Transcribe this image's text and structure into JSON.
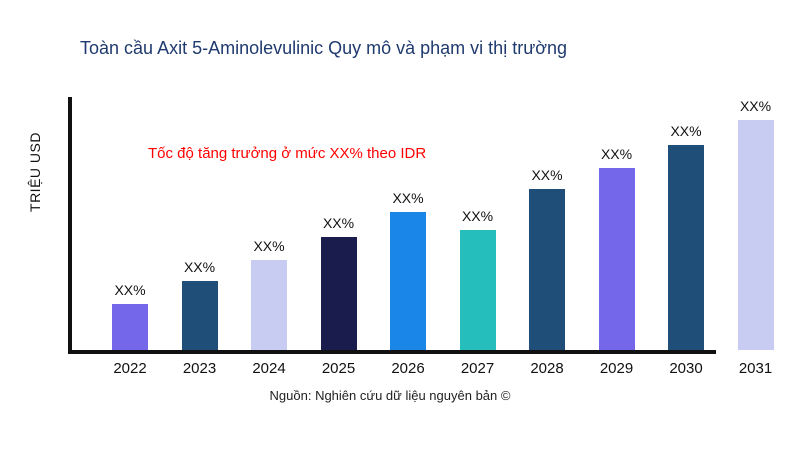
{
  "chart_data": {
    "type": "bar",
    "title": "Toàn cầu Axit 5-Aminolevulinic Quy mô và phạm vi thị trường",
    "ylabel": "TRIỆU USD",
    "annotation": "Tốc độ tăng trưởng ở mức XX% theo IDR",
    "source": "Nguồn: Nghiên cứu dữ liệu nguyên bản ©",
    "xlabel": "",
    "legend": false,
    "grid": false,
    "ylim": [
      0,
      100
    ],
    "categories": [
      "2022",
      "2023",
      "2024",
      "2025",
      "2026",
      "2027",
      "2028",
      "2029",
      "2030",
      "2031"
    ],
    "values": [
      20,
      30,
      39,
      49,
      60,
      52,
      70,
      79,
      89,
      100
    ],
    "bar_labels": [
      "XX%",
      "XX%",
      "XX%",
      "XX%",
      "XX%",
      "XX%",
      "XX%",
      "XX%",
      "XX%",
      "XX%"
    ],
    "bar_colors": [
      "#7567ea",
      "#1f4e79",
      "#c9ccf2",
      "#191c4d",
      "#1a86e8",
      "#26bdbd",
      "#1f4e79",
      "#7567ea",
      "#1f4e79",
      "#c9ccf2"
    ],
    "colors": {
      "title": "#1f3a6e",
      "annotation": "#ff0000",
      "axis": "#111111"
    }
  }
}
